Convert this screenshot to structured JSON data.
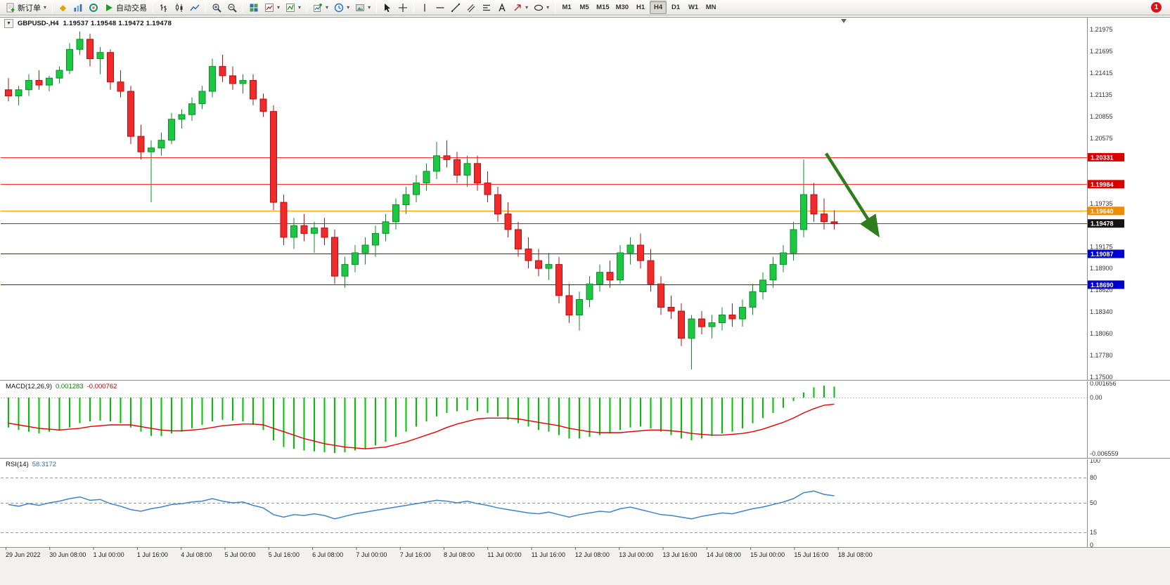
{
  "toolbar": {
    "new_order_label": "新订单",
    "autotrade_label": "自动交易",
    "timeframes": [
      "M1",
      "M5",
      "M15",
      "M30",
      "H1",
      "H4",
      "D1",
      "W1",
      "MN"
    ],
    "active_timeframe": "H4",
    "notification_count": "1"
  },
  "chart": {
    "symbol_period": "GBPUSD-,H4",
    "ohlc_text": "1.19537 1.19548 1.19472 1.19478",
    "open": "1.19537",
    "high": "1.19548",
    "low": "1.19472",
    "close": "1.19478"
  },
  "indicators": {
    "macd": {
      "name": "MACD(12,26,9)",
      "value": "0.001283",
      "signal": "-0.000762"
    },
    "rsi": {
      "name": "RSI(14)",
      "value": "58.3172"
    }
  },
  "time_axis": {
    "labels": [
      "29 Jun 2022",
      "30 Jun 08:00",
      "1 Jul 00:00",
      "1 Jul 16:00",
      "4 Jul 08:00",
      "5 Jul 00:00",
      "5 Jul 16:00",
      "6 Jul 08:00",
      "7 Jul 00:00",
      "7 Jul 16:00",
      "8 Jul 08:00",
      "11 Jul 00:00",
      "11 Jul 16:00",
      "12 Jul 08:00",
      "13 Jul 00:00",
      "13 Jul 16:00",
      "14 Jul 08:00",
      "15 Jul 00:00",
      "15 Jul 16:00",
      "18 Jul 08:00"
    ]
  },
  "chart_data": [
    {
      "type": "candlestick",
      "title": "GBPUSD- H4",
      "ylim": [
        1.17473,
        1.22102
      ],
      "up_color": "#1ec742",
      "down_color": "#ef2b2b",
      "y_ticks": [
        {
          "label": "1.21975",
          "value": 1.21975
        },
        {
          "label": "1.21695",
          "value": 1.21695
        },
        {
          "label": "1.21415",
          "value": 1.21415
        },
        {
          "label": "1.21135",
          "value": 1.21135
        },
        {
          "label": "1.20855",
          "value": 1.20855
        },
        {
          "label": "1.20575",
          "value": 1.20575
        },
        {
          "label": "1.19735",
          "value": 1.19735
        },
        {
          "label": "1.19175",
          "value": 1.19175
        },
        {
          "label": "1.18900",
          "value": 1.189
        },
        {
          "label": "1.18620",
          "value": 1.1862
        },
        {
          "label": "1.18340",
          "value": 1.1834
        },
        {
          "label": "1.18060",
          "value": 1.1806
        },
        {
          "label": "1.17780",
          "value": 1.1778
        },
        {
          "label": "1.17500",
          "value": 1.175
        }
      ],
      "hlines": [
        {
          "value": 1.20331,
          "label": "1.20331",
          "color": "#ff2a2a",
          "tag_bg": "#d90000",
          "role": "resistance"
        },
        {
          "value": 1.19984,
          "label": "1.19984",
          "color": "#ff2a2a",
          "tag_bg": "#d90000",
          "role": "resistance"
        },
        {
          "value": 1.1964,
          "label": "1.19640",
          "color": "#ff9c00",
          "tag_bg": "#f08c00",
          "role": "pivot"
        },
        {
          "value": 1.19478,
          "label": "1.19478",
          "color": "#4a4a4a",
          "tag_bg": "#141414",
          "role": "current-price"
        },
        {
          "value": 1.19087,
          "label": "1.19087",
          "color": "#1c1ce0",
          "tag_bg": "#0000cc",
          "role": "support"
        },
        {
          "value": 1.1869,
          "label": "1.18690",
          "color": "#1c1ce0",
          "tag_bg": "#0000cc",
          "role": "support"
        }
      ],
      "arrow": {
        "from_bar": 80.2,
        "from_price": 1.2038,
        "to_bar": 85.2,
        "to_price": 1.1935,
        "color": "#2f7d1e"
      },
      "ohlc": [
        [
          1.212,
          1.2135,
          1.2105,
          1.2112
        ],
        [
          1.2112,
          1.2125,
          1.21,
          1.212
        ],
        [
          1.212,
          1.214,
          1.2112,
          1.2132
        ],
        [
          1.2132,
          1.2145,
          1.212,
          1.2126
        ],
        [
          1.2126,
          1.2138,
          1.2118,
          1.2135
        ],
        [
          1.2135,
          1.215,
          1.2128,
          1.2145
        ],
        [
          1.2145,
          1.218,
          1.214,
          1.2172
        ],
        [
          1.2172,
          1.2195,
          1.2165,
          1.2185
        ],
        [
          1.2185,
          1.2192,
          1.215,
          1.216
        ],
        [
          1.216,
          1.2175,
          1.214,
          1.2168
        ],
        [
          1.2168,
          1.2172,
          1.212,
          1.213
        ],
        [
          1.213,
          1.2145,
          1.211,
          1.2118
        ],
        [
          1.2118,
          1.2125,
          1.205,
          1.206
        ],
        [
          1.206,
          1.2075,
          1.203,
          1.204
        ],
        [
          1.204,
          1.2055,
          1.1975,
          1.2045
        ],
        [
          1.2045,
          1.2065,
          1.2035,
          1.2055
        ],
        [
          1.2055,
          1.209,
          1.205,
          1.2082
        ],
        [
          1.2082,
          1.2095,
          1.207,
          1.2088
        ],
        [
          1.2088,
          1.211,
          1.208,
          1.2102
        ],
        [
          1.2102,
          1.2125,
          1.2095,
          1.2118
        ],
        [
          1.2118,
          1.216,
          1.211,
          1.215
        ],
        [
          1.215,
          1.2165,
          1.213,
          1.2138
        ],
        [
          1.2138,
          1.215,
          1.212,
          1.2128
        ],
        [
          1.2128,
          1.214,
          1.2115,
          1.2132
        ],
        [
          1.2132,
          1.214,
          1.21,
          1.2108
        ],
        [
          1.2108,
          1.2115,
          1.2085,
          1.2092
        ],
        [
          1.2092,
          1.21,
          1.1965,
          1.1975
        ],
        [
          1.1975,
          1.1985,
          1.192,
          1.193
        ],
        [
          1.193,
          1.1955,
          1.1915,
          1.1945
        ],
        [
          1.1945,
          1.196,
          1.1925,
          1.1935
        ],
        [
          1.1935,
          1.195,
          1.191,
          1.1942
        ],
        [
          1.1942,
          1.1955,
          1.192,
          1.193
        ],
        [
          1.193,
          1.194,
          1.187,
          1.188
        ],
        [
          1.188,
          1.1905,
          1.1865,
          1.1895
        ],
        [
          1.1895,
          1.192,
          1.1885,
          1.191
        ],
        [
          1.191,
          1.193,
          1.1895,
          1.192
        ],
        [
          1.192,
          1.1945,
          1.1905,
          1.1935
        ],
        [
          1.1935,
          1.196,
          1.1925,
          1.195
        ],
        [
          1.195,
          1.198,
          1.194,
          1.1972
        ],
        [
          1.1972,
          1.1995,
          1.196,
          1.1985
        ],
        [
          1.1985,
          1.201,
          1.1975,
          1.2
        ],
        [
          1.2,
          1.2025,
          1.199,
          1.2015
        ],
        [
          1.2015,
          1.2053,
          1.2005,
          1.2035
        ],
        [
          1.2035,
          1.2055,
          1.202,
          1.203
        ],
        [
          1.203,
          1.204,
          1.2,
          1.201
        ],
        [
          1.201,
          1.2035,
          1.1995,
          1.2025
        ],
        [
          1.2025,
          1.2035,
          1.199,
          1.2
        ],
        [
          1.2,
          1.2015,
          1.1975,
          1.1985
        ],
        [
          1.1985,
          1.1995,
          1.195,
          1.196
        ],
        [
          1.196,
          1.1975,
          1.193,
          1.194
        ],
        [
          1.194,
          1.195,
          1.1905,
          1.1915
        ],
        [
          1.1915,
          1.193,
          1.189,
          1.19
        ],
        [
          1.19,
          1.1915,
          1.188,
          1.189
        ],
        [
          1.189,
          1.191,
          1.1875,
          1.1895
        ],
        [
          1.1895,
          1.1905,
          1.1845,
          1.1855
        ],
        [
          1.1855,
          1.187,
          1.182,
          1.183
        ],
        [
          1.183,
          1.186,
          1.181,
          1.185
        ],
        [
          1.185,
          1.188,
          1.184,
          1.187
        ],
        [
          1.187,
          1.1895,
          1.186,
          1.1885
        ],
        [
          1.1885,
          1.19,
          1.1865,
          1.1875
        ],
        [
          1.1875,
          1.192,
          1.187,
          1.191
        ],
        [
          1.191,
          1.193,
          1.1895,
          1.192
        ],
        [
          1.192,
          1.1935,
          1.189,
          1.19
        ],
        [
          1.19,
          1.1915,
          1.186,
          1.187
        ],
        [
          1.187,
          1.188,
          1.183,
          1.184
        ],
        [
          1.184,
          1.1855,
          1.1825,
          1.1835
        ],
        [
          1.1835,
          1.1845,
          1.179,
          1.18
        ],
        [
          1.18,
          1.183,
          1.176,
          1.1825
        ],
        [
          1.1825,
          1.1835,
          1.1805,
          1.1815
        ],
        [
          1.1815,
          1.183,
          1.18,
          1.182
        ],
        [
          1.182,
          1.184,
          1.181,
          1.183
        ],
        [
          1.183,
          1.1845,
          1.1815,
          1.1825
        ],
        [
          1.1825,
          1.185,
          1.1815,
          1.184
        ],
        [
          1.184,
          1.187,
          1.183,
          1.186
        ],
        [
          1.186,
          1.1885,
          1.185,
          1.1875
        ],
        [
          1.1875,
          1.1905,
          1.1865,
          1.1895
        ],
        [
          1.1895,
          1.192,
          1.1885,
          1.191
        ],
        [
          1.191,
          1.195,
          1.19,
          1.194
        ],
        [
          1.194,
          1.203,
          1.193,
          1.1985
        ],
        [
          1.1985,
          1.2,
          1.195,
          1.196
        ],
        [
          1.196,
          1.198,
          1.194,
          1.195
        ],
        [
          1.195,
          1.1965,
          1.194,
          1.19478
        ]
      ]
    },
    {
      "type": "bar",
      "name": "MACD(12,26,9)",
      "ylim": [
        -0.0069,
        0.0019
      ],
      "histogram_color": "#00c000",
      "signal_color": "#e00000",
      "y_ticks": [
        {
          "label": "0.001656",
          "value": 0.001656
        },
        {
          "label": "0.00",
          "value": 0
        },
        {
          "label": "-0.006559",
          "value": -0.006559
        }
      ],
      "values": [
        -0.0035,
        -0.0038,
        -0.004,
        -0.0042,
        -0.004,
        -0.0038,
        -0.0035,
        -0.003,
        -0.0028,
        -0.0027,
        -0.0028,
        -0.003,
        -0.0035,
        -0.004,
        -0.0045,
        -0.0045,
        -0.0042,
        -0.004,
        -0.0036,
        -0.0032,
        -0.0028,
        -0.0026,
        -0.0027,
        -0.0028,
        -0.0032,
        -0.0038,
        -0.005,
        -0.0058,
        -0.006,
        -0.0062,
        -0.0063,
        -0.0064,
        -0.0065,
        -0.0064,
        -0.0062,
        -0.006,
        -0.0056,
        -0.0052,
        -0.0046,
        -0.004,
        -0.0034,
        -0.0028,
        -0.0022,
        -0.0018,
        -0.0016,
        -0.0015,
        -0.0016,
        -0.0018,
        -0.0022,
        -0.0026,
        -0.003,
        -0.0034,
        -0.0038,
        -0.004,
        -0.0044,
        -0.0048,
        -0.0048,
        -0.0046,
        -0.0044,
        -0.0042,
        -0.0038,
        -0.0035,
        -0.0034,
        -0.0036,
        -0.004,
        -0.0044,
        -0.0048,
        -0.005,
        -0.0048,
        -0.0045,
        -0.0042,
        -0.004,
        -0.0036,
        -0.003,
        -0.0024,
        -0.0018,
        -0.0012,
        -0.0004,
        0.0006,
        0.0012,
        0.0014,
        0.001283
      ],
      "signal": [
        -0.003,
        -0.0032,
        -0.0034,
        -0.0036,
        -0.0037,
        -0.0038,
        -0.0037,
        -0.0036,
        -0.0034,
        -0.0033,
        -0.0032,
        -0.0032,
        -0.0032,
        -0.0034,
        -0.0036,
        -0.0038,
        -0.0039,
        -0.0039,
        -0.0038,
        -0.0037,
        -0.0035,
        -0.0033,
        -0.0032,
        -0.0031,
        -0.0031,
        -0.0032,
        -0.0036,
        -0.004,
        -0.0044,
        -0.0048,
        -0.0051,
        -0.0054,
        -0.0056,
        -0.0058,
        -0.0059,
        -0.006,
        -0.0059,
        -0.0058,
        -0.0055,
        -0.0052,
        -0.0048,
        -0.0044,
        -0.004,
        -0.0035,
        -0.0031,
        -0.0028,
        -0.0025,
        -0.0024,
        -0.0024,
        -0.0024,
        -0.0025,
        -0.0027,
        -0.0029,
        -0.0031,
        -0.0033,
        -0.0036,
        -0.0038,
        -0.004,
        -0.0041,
        -0.0041,
        -0.0041,
        -0.004,
        -0.0039,
        -0.0038,
        -0.0038,
        -0.0039,
        -0.004,
        -0.0042,
        -0.0043,
        -0.0044,
        -0.0044,
        -0.0043,
        -0.0042,
        -0.004,
        -0.0037,
        -0.0033,
        -0.0029,
        -0.0024,
        -0.0018,
        -0.0013,
        -0.0009,
        -0.000762
      ]
    },
    {
      "type": "line",
      "name": "RSI(14)",
      "ylim": [
        0,
        100
      ],
      "line_color": "#3f84c4",
      "levels": [
        80,
        50,
        15
      ],
      "y_ticks": [
        {
          "label": "100",
          "value": 100
        },
        {
          "label": "80",
          "value": 80
        },
        {
          "label": "50",
          "value": 50
        },
        {
          "label": "15",
          "value": 15
        },
        {
          "label": "0",
          "value": 0
        }
      ],
      "values": [
        48,
        46,
        49,
        47,
        50,
        52,
        55,
        57,
        53,
        54,
        49,
        46,
        42,
        40,
        43,
        45,
        48,
        49,
        51,
        52,
        55,
        52,
        50,
        51,
        47,
        44,
        36,
        33,
        36,
        35,
        37,
        35,
        31,
        34,
        37,
        39,
        41,
        43,
        45,
        47,
        49,
        51,
        53,
        52,
        50,
        52,
        49,
        47,
        44,
        42,
        40,
        38,
        37,
        39,
        36,
        33,
        36,
        38,
        40,
        39,
        43,
        45,
        42,
        39,
        36,
        35,
        33,
        31,
        34,
        36,
        38,
        37,
        40,
        43,
        45,
        48,
        51,
        55,
        62,
        64,
        60,
        58.3
      ]
    }
  ]
}
